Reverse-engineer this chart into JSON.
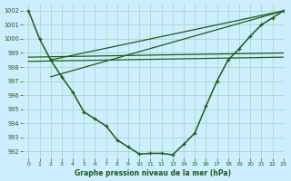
{
  "background_color": "#cceeff",
  "grid_color": "#aaddcc",
  "line_color": "#1a5c1a",
  "title": "Graphe pression niveau de la mer (hPa)",
  "xlim": [
    -0.5,
    23
  ],
  "ylim": [
    991.5,
    1002.5
  ],
  "yticks": [
    992,
    993,
    994,
    995,
    996,
    997,
    998,
    999,
    1000,
    1001,
    1002
  ],
  "xticks": [
    0,
    1,
    2,
    3,
    4,
    5,
    6,
    7,
    8,
    9,
    10,
    11,
    12,
    13,
    14,
    15,
    16,
    17,
    18,
    19,
    20,
    21,
    22,
    23
  ],
  "main_x": [
    0,
    1,
    2,
    3,
    4,
    5,
    6,
    7,
    8,
    9,
    10,
    11,
    12,
    13,
    14,
    15,
    16,
    17,
    18,
    19,
    20,
    21,
    22,
    23
  ],
  "main_y": [
    1002.0,
    1000.0,
    998.5,
    997.3,
    996.2,
    994.8,
    994.3,
    993.8,
    992.8,
    992.3,
    991.8,
    991.85,
    991.85,
    991.75,
    992.5,
    993.3,
    995.2,
    997.0,
    998.5,
    999.3,
    1000.2,
    1001.0,
    1001.5,
    1002.0
  ],
  "flat_line1_x": [
    0,
    23
  ],
  "flat_line1_y": [
    998.7,
    999.0
  ],
  "flat_line2_x": [
    0,
    23
  ],
  "flat_line2_y": [
    998.4,
    998.7
  ],
  "diag_line1_x": [
    2,
    23
  ],
  "diag_line1_y": [
    998.5,
    1002.0
  ],
  "diag_line2_x": [
    2,
    23
  ],
  "diag_line2_y": [
    997.3,
    1002.0
  ]
}
